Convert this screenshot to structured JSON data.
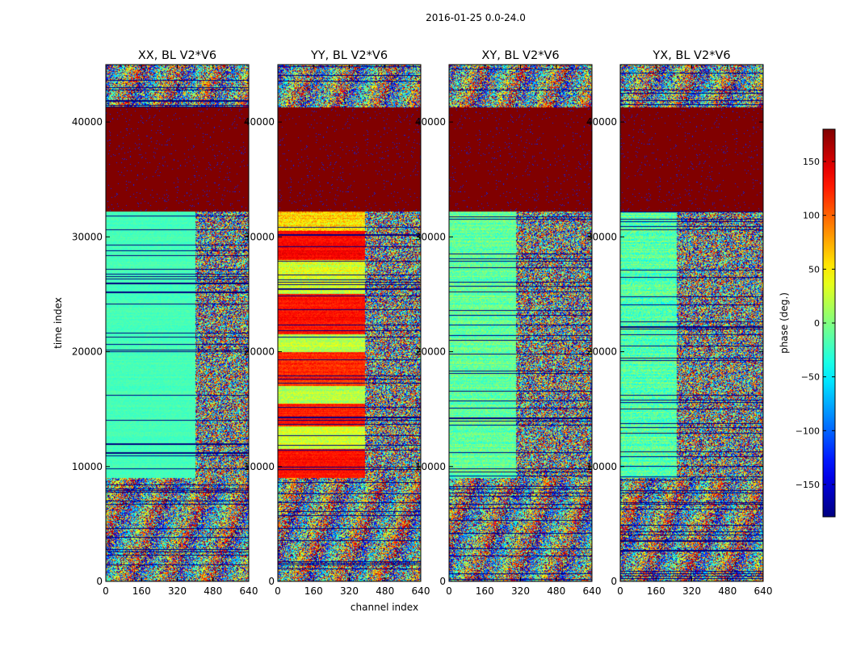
{
  "chart_data": {
    "type": "heatmap",
    "suptitle": "2016-01-25 0.0-24.0",
    "xlabel": "channel index",
    "ylabel": "time index",
    "xlim": [
      0,
      640
    ],
    "ylim": [
      0,
      45000
    ],
    "xticks": [
      0,
      160,
      320,
      480,
      640
    ],
    "yticks": [
      0,
      10000,
      20000,
      30000,
      40000
    ],
    "xtick_labels": [
      "0",
      "160",
      "320",
      "480",
      "640"
    ],
    "ytick_labels": [
      "0",
      "10000",
      "20000",
      "30000",
      "40000"
    ],
    "panels": [
      {
        "title": "XX, BL V2*V6",
        "bands": [
          {
            "t0": 0,
            "t1": 9000,
            "kind": "noise",
            "base": 0,
            "spread": 180
          },
          {
            "t0": 9000,
            "t1": 32200,
            "kind": "flag",
            "base": -20,
            "spread": 15,
            "edge": 400
          },
          {
            "t0": 32200,
            "t1": 41300,
            "kind": "solid",
            "base": 180,
            "spread": 0
          },
          {
            "t0": 41300,
            "t1": 45000,
            "kind": "noise",
            "base": 0,
            "spread": 180
          }
        ]
      },
      {
        "title": "YY, BL V2*V6",
        "bands": [
          {
            "t0": 0,
            "t1": 9000,
            "kind": "noise",
            "base": 40,
            "spread": 180
          },
          {
            "t0": 9000,
            "t1": 11500,
            "kind": "flag",
            "base": 130,
            "spread": 25,
            "edge": 390
          },
          {
            "t0": 11500,
            "t1": 13500,
            "kind": "flag",
            "base": 30,
            "spread": 40,
            "edge": 390
          },
          {
            "t0": 13500,
            "t1": 15500,
            "kind": "flag",
            "base": 125,
            "spread": 25,
            "edge": 390
          },
          {
            "t0": 15500,
            "t1": 17000,
            "kind": "flag",
            "base": 20,
            "spread": 40,
            "edge": 390
          },
          {
            "t0": 17000,
            "t1": 20000,
            "kind": "flag",
            "base": 120,
            "spread": 30,
            "edge": 390
          },
          {
            "t0": 20000,
            "t1": 21500,
            "kind": "flag",
            "base": 20,
            "spread": 40,
            "edge": 390
          },
          {
            "t0": 21500,
            "t1": 25000,
            "kind": "flag",
            "base": 130,
            "spread": 25,
            "edge": 390
          },
          {
            "t0": 25000,
            "t1": 28000,
            "kind": "flag",
            "base": 30,
            "spread": 50,
            "edge": 390
          },
          {
            "t0": 28000,
            "t1": 30500,
            "kind": "flag",
            "base": 135,
            "spread": 25,
            "edge": 390
          },
          {
            "t0": 30500,
            "t1": 32200,
            "kind": "flag",
            "base": 60,
            "spread": 60,
            "edge": 390
          },
          {
            "t0": 32200,
            "t1": 41300,
            "kind": "solid",
            "base": 180,
            "spread": 0
          },
          {
            "t0": 41300,
            "t1": 45000,
            "kind": "noise",
            "base": 0,
            "spread": 180
          }
        ]
      },
      {
        "title": "XY, BL V2*V6",
        "bands": [
          {
            "t0": 0,
            "t1": 9000,
            "kind": "noise",
            "base": 0,
            "spread": 180
          },
          {
            "t0": 9000,
            "t1": 32200,
            "kind": "flag",
            "base": -10,
            "spread": 45,
            "edge": 300
          },
          {
            "t0": 32200,
            "t1": 41300,
            "kind": "solid",
            "base": 180,
            "spread": 0
          },
          {
            "t0": 41300,
            "t1": 45000,
            "kind": "noise",
            "base": 0,
            "spread": 180
          }
        ]
      },
      {
        "title": "YX, BL V2*V6",
        "bands": [
          {
            "t0": 0,
            "t1": 9000,
            "kind": "noise",
            "base": 0,
            "spread": 180
          },
          {
            "t0": 9000,
            "t1": 32200,
            "kind": "flag",
            "base": -15,
            "spread": 55,
            "edge": 250
          },
          {
            "t0": 32200,
            "t1": 41300,
            "kind": "solid",
            "base": 180,
            "spread": 0
          },
          {
            "t0": 41300,
            "t1": 45000,
            "kind": "noise",
            "base": 0,
            "spread": 180
          }
        ]
      }
    ],
    "colorbar": {
      "label": "phase (deg.)",
      "range": [
        -180,
        180
      ],
      "ticks": [
        150,
        100,
        50,
        0,
        -50,
        -100,
        -150
      ],
      "tick_labels": [
        "150",
        "100",
        "50",
        "0",
        "−50",
        "−100",
        "−150"
      ],
      "colormap": "jet"
    }
  }
}
